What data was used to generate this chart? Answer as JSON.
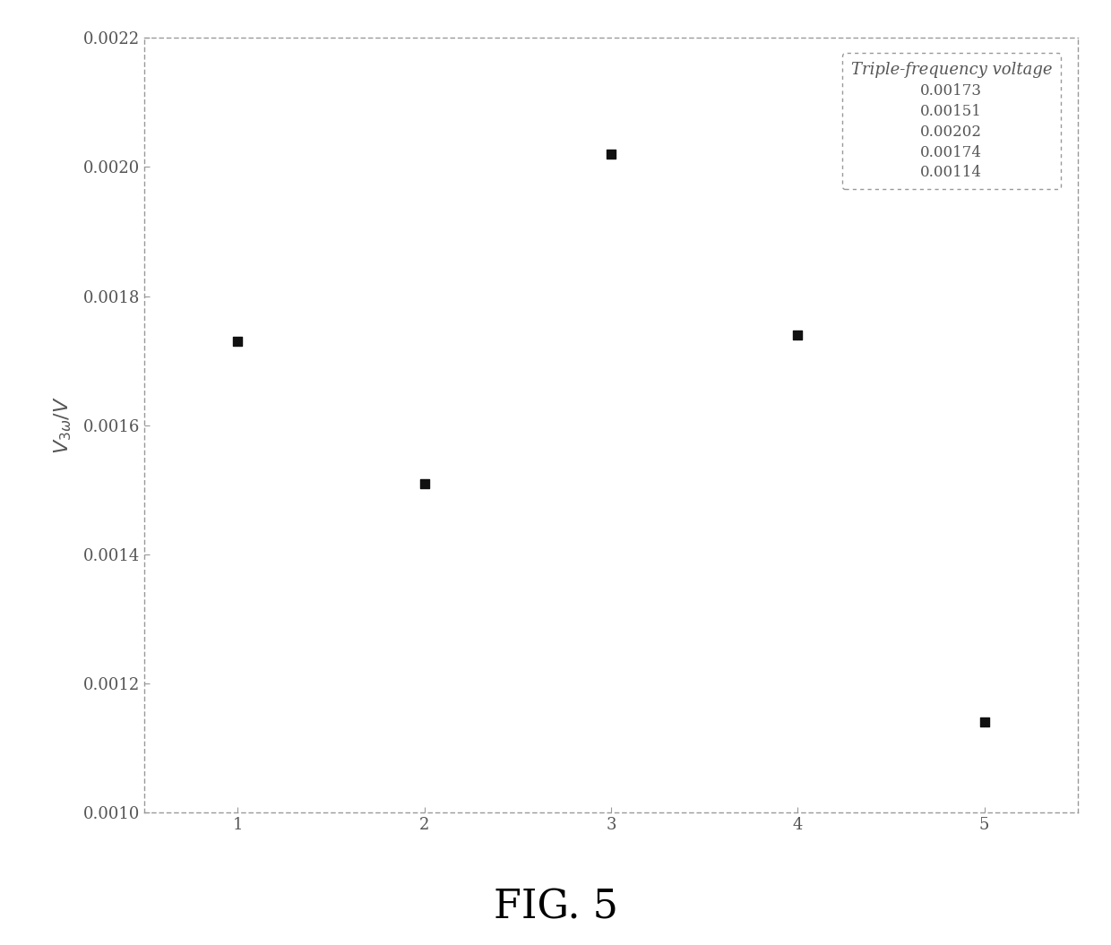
{
  "x_values": [
    1,
    2,
    3,
    4,
    5
  ],
  "y_values": [
    0.00173,
    0.00151,
    0.00202,
    0.00174,
    0.00114
  ],
  "legend_title": "Triple-frequency voltage",
  "legend_labels": [
    "0.00173",
    "0.00151",
    "0.00202",
    "0.00174",
    "0.00114"
  ],
  "ylabel": "V_{3omega}/V",
  "ylim": [
    0.001,
    0.0022
  ],
  "xlim": [
    0.5,
    5.5
  ],
  "yticks": [
    0.001,
    0.0012,
    0.0014,
    0.0016,
    0.0018,
    0.002,
    0.0022
  ],
  "xticks": [
    1,
    2,
    3,
    4,
    5
  ],
  "fig_label": "FIG. 5",
  "marker": "s",
  "marker_color": "#111111",
  "marker_size": 55,
  "background_color": "#ffffff",
  "spine_color": "#999999",
  "tick_color": "#777777",
  "text_color": "#555555",
  "legend_title_fontsize": 13,
  "legend_text_fontsize": 12,
  "ylabel_fontsize": 16,
  "figlabel_fontsize": 32,
  "tick_labelsize": 13
}
